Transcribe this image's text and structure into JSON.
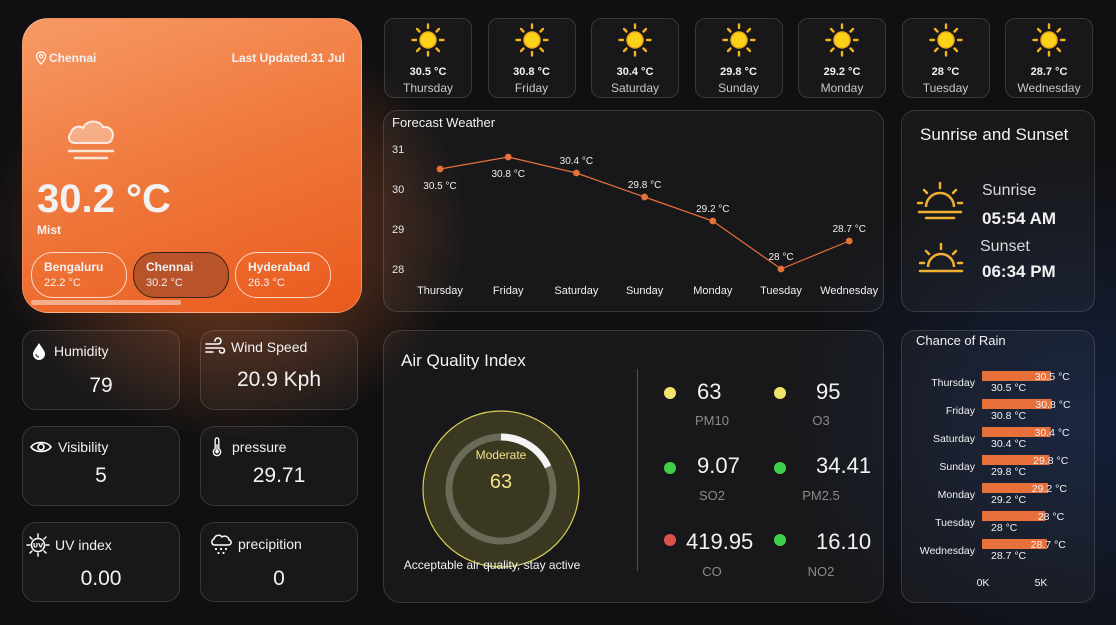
{
  "current": {
    "location": "Chennai",
    "last_updated": "Last Updated.31 Jul",
    "temperature": "30.2 °C",
    "condition": "Mist",
    "cities": [
      {
        "name": "Bengaluru",
        "temp": "22.2 °C"
      },
      {
        "name": "Chennai",
        "temp": "30.2 °C"
      },
      {
        "name": "Hyderabad",
        "temp": "26.3 °C"
      }
    ]
  },
  "forecast_tiles": [
    {
      "temp": "30.5 °C",
      "day": "Thursday"
    },
    {
      "temp": "30.8 °C",
      "day": "Friday"
    },
    {
      "temp": "30.4 °C",
      "day": "Saturday"
    },
    {
      "temp": "29.8 °C",
      "day": "Sunday"
    },
    {
      "temp": "29.2 °C",
      "day": "Monday"
    },
    {
      "temp": "28 °C",
      "day": "Tuesday"
    },
    {
      "temp": "28.7 °C",
      "day": "Wednesday"
    }
  ],
  "metrics": {
    "humidity": {
      "label": "Humidity",
      "value": "79"
    },
    "wind": {
      "label": "Wind Speed",
      "value": "20.9 Kph"
    },
    "visibility": {
      "label": "Visibility",
      "value": "5"
    },
    "pressure": {
      "label": "pressure",
      "value": "29.71"
    },
    "uv": {
      "label": "UV index",
      "value": "0.00"
    },
    "precip": {
      "label": "precipition",
      "value": "0"
    }
  },
  "sun": {
    "title": "Sunrise and Sunset",
    "sunrise_label": "Sunrise",
    "sunrise": "05:54 AM",
    "sunset_label": "Sunset",
    "sunset": "06:34 PM"
  },
  "aqi": {
    "title": "Air Quality Index",
    "level": "Moderate",
    "value": "63",
    "gauge_fraction": 0.18,
    "note": "Acceptable air quality, stay active",
    "pollutants": [
      {
        "name": "PM10",
        "value": "63",
        "color": "#f2e36b"
      },
      {
        "name": "O3",
        "value": "95",
        "color": "#f2e36b"
      },
      {
        "name": "SO2",
        "value": "9.07",
        "color": "#3fcf4b"
      },
      {
        "name": "PM2.5",
        "value": "34.41",
        "color": "#3fcf4b"
      },
      {
        "name": "CO",
        "value": "419.95",
        "color": "#d9534a"
      },
      {
        "name": "NO2",
        "value": "16.10",
        "color": "#3fcf4b"
      }
    ]
  },
  "chart_data": [
    {
      "type": "line",
      "title": "Forecast Weather",
      "categories": [
        "Thursday",
        "Friday",
        "Saturday",
        "Sunday",
        "Monday",
        "Tuesday",
        "Wednesday"
      ],
      "values": [
        30.5,
        30.8,
        30.4,
        29.8,
        29.2,
        28,
        28.7
      ],
      "data_labels": [
        "30.5 °C",
        "30.8 °C",
        "30.4 °C",
        "29.8 °C",
        "29.2 °C",
        "28 °C",
        "28.7 °C"
      ],
      "yticks": [
        28,
        29,
        30,
        31
      ],
      "ylim": [
        27.8,
        31.2
      ],
      "color": "#e8703a"
    },
    {
      "type": "bar",
      "title": "Chance of Rain",
      "orientation": "horizontal",
      "categories": [
        "Thursday",
        "Friday",
        "Saturday",
        "Sunday",
        "Monday",
        "Tuesday",
        "Wednesday"
      ],
      "values": [
        30.5,
        30.8,
        30.4,
        29.8,
        29.2,
        28,
        28.7
      ],
      "data_labels": [
        "30.5 °C",
        "30.8 °C",
        "30.4 °C",
        "29.8 °C",
        "29.2 °C",
        "28 °C",
        "28.7 °C"
      ],
      "xticks": [
        "0K",
        "5K"
      ],
      "color": "#e8703a"
    }
  ]
}
